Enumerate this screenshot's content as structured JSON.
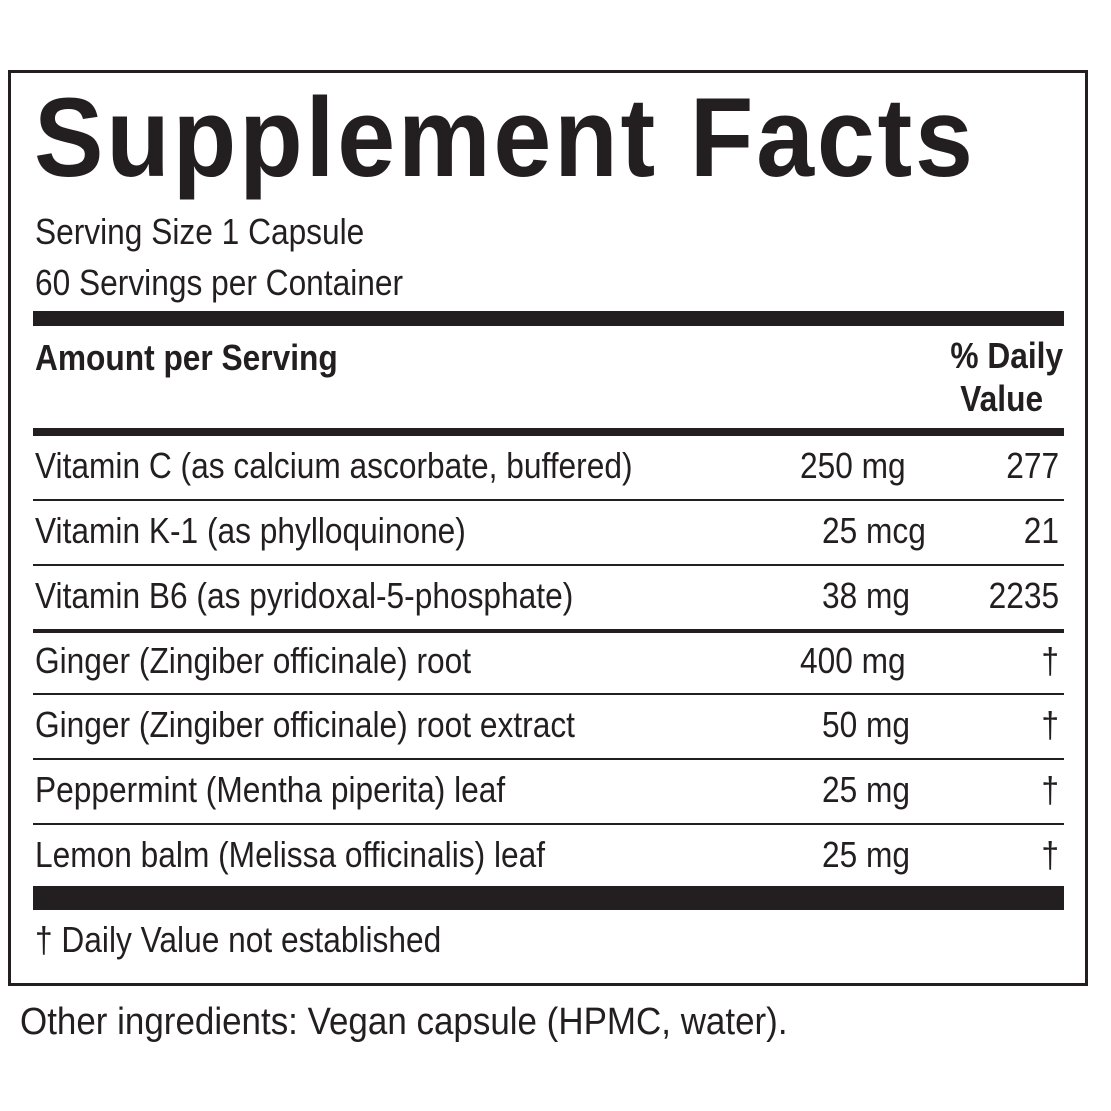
{
  "label": {
    "title": "Supplement Facts",
    "serving_size": "Serving Size 1 Capsule",
    "servings_per_container": "60 Servings per Container",
    "amount_header": "Amount per Serving",
    "dv_header_line1": "% Daily",
    "dv_header_line2": "Value",
    "rows": [
      {
        "name": "Vitamin C (as calcium ascorbate, buffered)",
        "amount": "250 mg",
        "dv": 277
      },
      {
        "name": "Vitamin K-1 (as phylloquinone)",
        "amount": "25 mcg",
        "dv": 21
      },
      {
        "name": "Vitamin B6 (as pyridoxal-5-phosphate)",
        "amount": "38 mg",
        "dv": 2235
      },
      {
        "name": "Ginger (Zingiber officinale) root",
        "amount": "400 mg",
        "dv": "†"
      },
      {
        "name": "Ginger (Zingiber officinale) root extract",
        "amount": "50 mg",
        "dv": "†"
      },
      {
        "name": "Peppermint (Mentha piperita) leaf",
        "amount": "25 mg",
        "dv": "†"
      },
      {
        "name": "Lemon balm (Melissa officinalis) leaf",
        "amount": "25 mg",
        "dv": "†"
      }
    ],
    "footnote": "† Daily Value not established"
  },
  "other_ingredients": "Other ingredients: Vegan capsule (HPMC, water)."
}
